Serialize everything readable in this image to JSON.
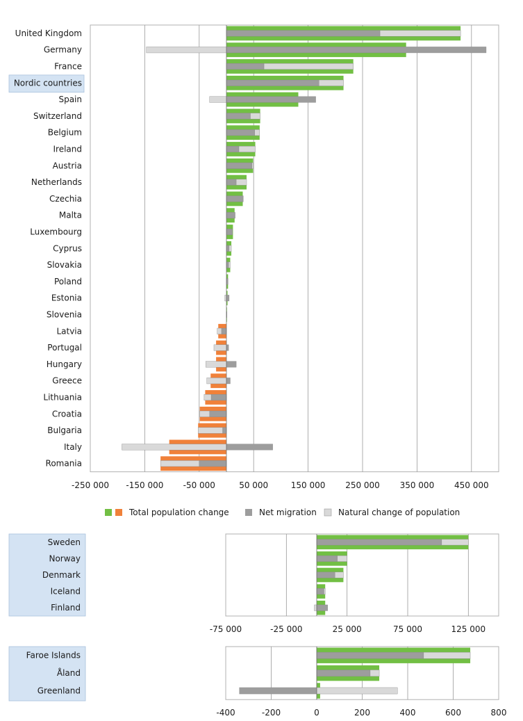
{
  "legend": {
    "total_label": "Total population change",
    "migration_label": "Net migration",
    "natural_label": "Natural change of population"
  },
  "colors": {
    "total_positive": "#72BF44",
    "total_negative": "#F0813A",
    "net_migration": "#9D9D9D",
    "natural_change": "#D9D9D9",
    "highlight": "#D4E3F3",
    "grid": "#9A9A9A",
    "frame": "#B0B0B0"
  },
  "chart_data": [
    {
      "type": "bar",
      "orientation": "horizontal",
      "xlim": [
        -250000,
        500000
      ],
      "ticks": [
        -250000,
        -150000,
        -50000,
        50000,
        150000,
        250000,
        350000,
        450000
      ],
      "tick_labels": [
        "-250 000",
        "-150 000",
        "-50 000",
        "50 000",
        "150 000",
        "250 000",
        "350 000",
        "450 000"
      ],
      "highlight_categories": [
        "Nordic countries"
      ],
      "categories": [
        "United Kingdom",
        "Germany",
        "France",
        "Nordic countries",
        "Spain",
        "Switzerland",
        "Belgium",
        "Ireland",
        "Austria",
        "Netherlands",
        "Czechia",
        "Malta",
        "Luxembourg",
        "Cyprus",
        "Slovakia",
        "Poland",
        "Estonia",
        "Slovenia",
        "Latvia",
        "Portugal",
        "Hungary",
        "Greece",
        "Lithuania",
        "Croatia",
        "Bulgaria",
        "Italy",
        "Romania"
      ],
      "series": [
        {
          "name": "Total population change",
          "values": [
            430000,
            330000,
            233000,
            215000,
            132000,
            62000,
            61000,
            53000,
            49000,
            37000,
            30000,
            15000,
            12000,
            9000,
            7000,
            3000,
            2000,
            1000,
            -15000,
            -19000,
            -19000,
            -29000,
            -39000,
            -49000,
            -52000,
            -105000,
            -121000
          ]
        },
        {
          "name": "Net migration",
          "values": [
            282000,
            477000,
            69000,
            170000,
            164000,
            44000,
            52000,
            23000,
            47000,
            18000,
            31000,
            16000,
            11000,
            5000,
            4000,
            3000,
            5000,
            1000,
            -9000,
            4000,
            18000,
            7000,
            -28000,
            -31000,
            -7000,
            85000,
            -50000
          ]
        },
        {
          "name": "Natural change of population",
          "values": [
            148000,
            -147000,
            164000,
            45000,
            -31000,
            18000,
            9000,
            30000,
            2000,
            19000,
            0,
            0,
            0,
            4000,
            3000,
            0,
            -3000,
            0,
            -8000,
            -23000,
            -38000,
            -36000,
            -13000,
            -18000,
            -45000,
            -192000,
            -71000
          ]
        }
      ]
    },
    {
      "type": "bar",
      "orientation": "horizontal",
      "xlim": [
        -75000,
        150000
      ],
      "ticks": [
        -75000,
        -25000,
        25000,
        75000,
        125000
      ],
      "tick_labels": [
        "-75 000",
        "-25 000",
        "25 000",
        "75 000",
        "125 000"
      ],
      "categories": [
        "Sweden",
        "Norway",
        "Denmark",
        "Iceland",
        "Finland"
      ],
      "series": [
        {
          "name": "Total population change",
          "values": [
            125000,
            25000,
            22000,
            7000,
            7000
          ]
        },
        {
          "name": "Net migration",
          "values": [
            103000,
            17000,
            15000,
            6000,
            9000
          ]
        },
        {
          "name": "Natural change of population",
          "values": [
            22000,
            8000,
            7000,
            1000,
            -2000
          ]
        }
      ]
    },
    {
      "type": "bar",
      "orientation": "horizontal",
      "xlim": [
        -400,
        800
      ],
      "ticks": [
        -400,
        -200,
        0,
        200,
        400,
        600,
        800
      ],
      "tick_labels": [
        "-400",
        "-200",
        "0",
        "200",
        "400",
        "600",
        "800"
      ],
      "categories": [
        "Faroe Islands",
        "Åland",
        "Greenland"
      ],
      "series": [
        {
          "name": "Total population change",
          "values": [
            675,
            275,
            15
          ]
        },
        {
          "name": "Net migration",
          "values": [
            470,
            235,
            -340
          ]
        },
        {
          "name": "Natural change of population",
          "values": [
            205,
            40,
            355
          ]
        }
      ]
    }
  ]
}
